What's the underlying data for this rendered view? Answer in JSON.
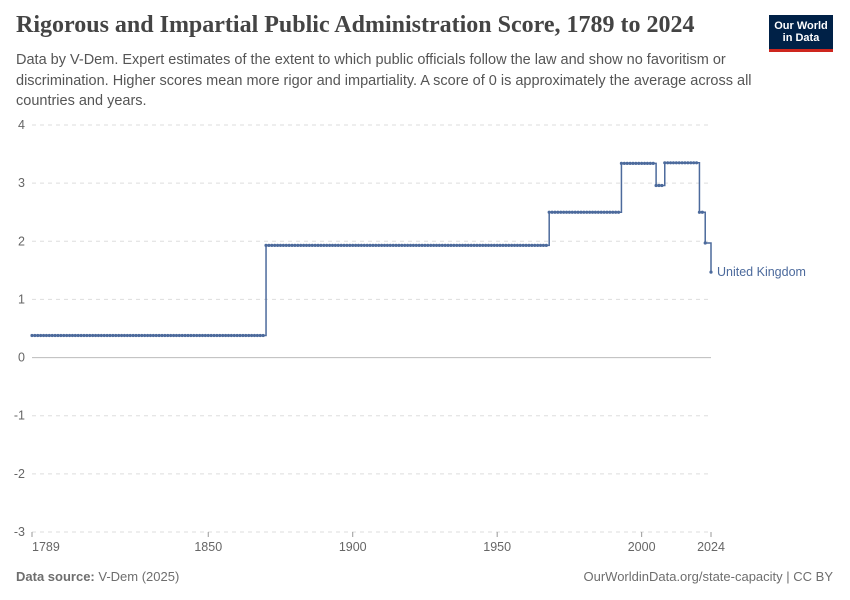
{
  "header": {
    "title": "Rigorous and Impartial Public Administration Score, 1789 to 2024",
    "subtitle": "Data by V-Dem. Expert estimates of the extent to which public officials follow the law and show no favoritism or discrimination. Higher scores mean more rigor and impartiality. A score of 0 is approximately the average across all countries and years."
  },
  "logo": {
    "line1": "Our World",
    "line2": "in Data"
  },
  "footer": {
    "source_label": "Data source:",
    "source_value": "V-Dem (2025)",
    "url": "OurWorldinData.org/state-capacity | CC BY"
  },
  "colors": {
    "series": "#4c6a9c",
    "grid": "#dddddd",
    "zero_line": "#bbbbbb",
    "logo_bg": "#002147",
    "logo_accent": "#ce261e"
  },
  "chart_data": {
    "type": "line",
    "xlim": [
      1789,
      2024
    ],
    "ylim": [
      -3,
      4
    ],
    "x_ticks": [
      1789,
      1850,
      1900,
      1950,
      2000,
      2024
    ],
    "y_ticks": [
      -3,
      -2,
      -1,
      0,
      1,
      2,
      3,
      4
    ],
    "grid": true,
    "series": [
      {
        "name": "United Kingdom",
        "segments": [
          {
            "x_start": 1789,
            "x_end": 1869,
            "y": 0.38
          },
          {
            "x_start": 1870,
            "x_end": 1967,
            "y": 1.93
          },
          {
            "x_start": 1968,
            "x_end": 1992,
            "y": 2.5
          },
          {
            "x_start": 1993,
            "x_end": 2004,
            "y": 3.34
          },
          {
            "x_start": 2005,
            "x_end": 2007,
            "y": 2.96
          },
          {
            "x_start": 2008,
            "x_end": 2019,
            "y": 3.35
          },
          {
            "x_start": 2020,
            "x_end": 2021,
            "y": 2.5
          },
          {
            "x_start": 2022,
            "x_end": 2022,
            "y": 1.97
          },
          {
            "x_start": 2024,
            "x_end": 2024,
            "y": 1.47
          }
        ]
      }
    ]
  }
}
